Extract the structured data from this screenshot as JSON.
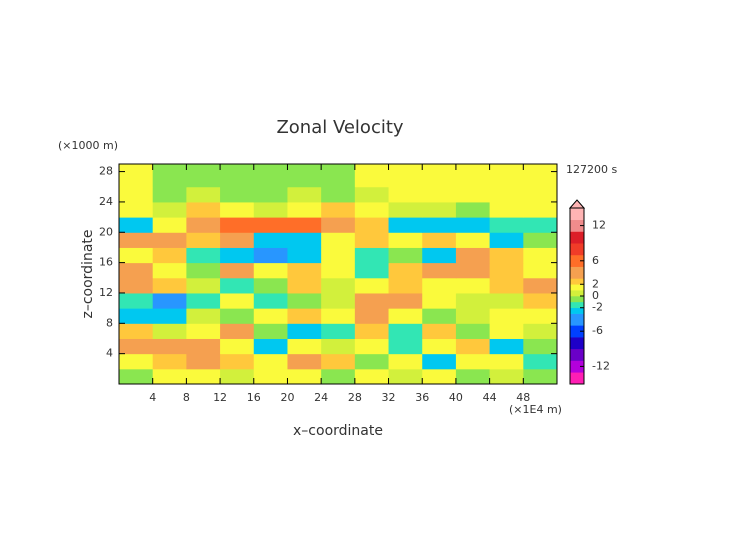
{
  "chart_data": {
    "type": "contour",
    "title": "Zonal Velocity",
    "x_label": "x–coordinate",
    "y_label": "z–coordinate",
    "x_unit": "(×1E4 m)",
    "y_unit": "(×1000 m)",
    "time_label": "127200 s",
    "xlim": [
      0,
      52
    ],
    "ylim": [
      0,
      29
    ],
    "xticks": [
      4,
      8,
      12,
      16,
      20,
      24,
      28,
      32,
      36,
      40,
      44,
      48
    ],
    "yticks": [
      4,
      8,
      12,
      16,
      20,
      24,
      28
    ],
    "x_bins": [
      0,
      4,
      8,
      12,
      16,
      20,
      24,
      28,
      32,
      36,
      40,
      44,
      48,
      52
    ],
    "y_bins": [
      0,
      2,
      4,
      6,
      8,
      10,
      12,
      14,
      16,
      18,
      20,
      22,
      24,
      26,
      28,
      30
    ],
    "values": [
      [
        -0.5,
        1.5,
        1.5,
        0.5,
        1.5,
        1.5,
        -0.5,
        1.5,
        0.5,
        1.5,
        -0.5,
        0.5,
        -0.5
      ],
      [
        1.5,
        2.5,
        4,
        2.5,
        1.5,
        4,
        2.5,
        -0.5,
        1.5,
        -2.5,
        1.5,
        1.5,
        -1.5
      ],
      [
        4,
        4,
        4,
        1.5,
        -3,
        1.5,
        0.5,
        1.5,
        -2,
        1.5,
        2.5,
        -2.5,
        -0.5
      ],
      [
        2.5,
        0.5,
        1.5,
        4,
        -0.5,
        -2.5,
        -1.5,
        2.5,
        -1.5,
        2.5,
        -0.5,
        1.5,
        0.5
      ],
      [
        -2.5,
        -2.5,
        0.5,
        -0.5,
        1.5,
        2.5,
        1.5,
        4,
        1.5,
        -0.5,
        0.5,
        1.5,
        1.5
      ],
      [
        -2,
        -4,
        -2,
        1.5,
        -2,
        -0.5,
        0.5,
        4,
        4,
        1.5,
        0.5,
        0.5,
        2.5
      ],
      [
        4,
        2.5,
        0.5,
        -1.5,
        -0.5,
        2.5,
        0.5,
        1.5,
        2.5,
        1.5,
        1.5,
        2.5,
        4
      ],
      [
        4,
        1.5,
        -0.5,
        4,
        1.5,
        2.5,
        1.5,
        -1.5,
        2.5,
        4,
        4,
        2.5,
        1.5
      ],
      [
        1.5,
        2.5,
        -1.5,
        -2.5,
        -4,
        -2.5,
        1.5,
        -1.5,
        -0.5,
        -2.5,
        4,
        2.5,
        1.5
      ],
      [
        4,
        3,
        2.5,
        4,
        -3,
        -2.5,
        1.5,
        2.5,
        1.5,
        2.5,
        1.5,
        -2.5,
        -0.5
      ],
      [
        -2.5,
        1.5,
        4,
        6,
        6,
        6,
        4,
        2.5,
        -2.5,
        -3,
        -2.5,
        -2,
        -1.5
      ],
      [
        1.5,
        0.5,
        2.5,
        1.5,
        0.5,
        1.5,
        2.5,
        1.5,
        0.5,
        0.5,
        -0.5,
        1.5,
        1.5
      ],
      [
        1.5,
        -0.5,
        0.5,
        -0.5,
        -0.5,
        0.5,
        -0.5,
        0.5,
        1.5,
        1.5,
        1.5,
        1.5,
        1.5
      ],
      [
        1.5,
        -0.5,
        -0.5,
        -0.5,
        -0.5,
        -0.5,
        -0.5,
        1.5,
        1.5,
        1.5,
        1.5,
        1.5,
        1.5
      ],
      [
        1.5,
        -0.5,
        -0.5,
        -0.5,
        -0.5,
        -0.5,
        -0.5,
        1.5,
        1.5,
        1.5,
        1.5,
        1.5,
        1.5
      ]
    ],
    "colorbar": {
      "lim": [
        -15,
        15
      ],
      "ticks": [
        -12,
        -6,
        -2,
        0,
        2,
        6,
        12
      ],
      "bounds": [
        -15,
        -13,
        -11,
        -9,
        -7,
        -5,
        -3,
        -2,
        -1,
        0,
        1,
        2,
        3,
        5,
        7,
        9,
        11,
        13,
        15
      ],
      "colors": [
        "#ff1eb4",
        "#b400dc",
        "#6a00c8",
        "#1e00c8",
        "#0040ff",
        "#2896ff",
        "#00c8f0",
        "#32e6b4",
        "#8ae650",
        "#d2f03c",
        "#fafa3c",
        "#ffc83c",
        "#f5a050",
        "#ff6e28",
        "#f03c28",
        "#dc1e28",
        "#f08c8c",
        "#ffb4b4"
      ]
    }
  }
}
